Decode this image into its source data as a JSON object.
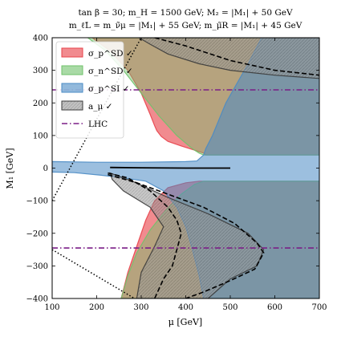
{
  "chart_data": {
    "type": "area",
    "title_line1": "tan β = 30; m_H = 1500 GeV; M₂ = |M₁| + 50 GeV",
    "title_line2": "m_ℓ̃L = m_ν̃μ = |M₁| + 55 GeV; m_μ̃R = |M₁| + 45 GeV",
    "xlabel": "μ [GeV]",
    "ylabel": "M₁ [GeV]",
    "xlim": [
      100,
      700
    ],
    "ylim": [
      -400,
      400
    ],
    "xticks": [
      100,
      200,
      300,
      400,
      500,
      600,
      700
    ],
    "yticks": [
      -400,
      -300,
      -200,
      -100,
      0,
      100,
      200,
      300,
      400
    ],
    "legend_position": "top-left",
    "series": [
      {
        "name": "σ_p^SD ✓",
        "kind": "region",
        "color": "#e8434b",
        "opacity": 0.62,
        "upper": [
          [
            190,
            400
          ],
          [
            230,
            360
          ],
          [
            270,
            300
          ],
          [
            300,
            230
          ],
          [
            320,
            165
          ],
          [
            330,
            130
          ],
          [
            335,
            115
          ],
          [
            345,
            97
          ],
          [
            360,
            82
          ],
          [
            390,
            68
          ],
          [
            420,
            55
          ],
          [
            440,
            46
          ],
          [
            445,
            40
          ],
          [
            700,
            40
          ],
          [
            700,
            400
          ]
        ],
        "lower": [
          [
            255,
            -400
          ],
          [
            270,
            -320
          ],
          [
            290,
            -240
          ],
          [
            310,
            -160
          ],
          [
            330,
            -100
          ],
          [
            360,
            -60
          ],
          [
            400,
            -45
          ],
          [
            430,
            -40
          ],
          [
            700,
            -40
          ],
          [
            700,
            -400
          ]
        ]
      },
      {
        "name": "σ_n^SD ✓",
        "kind": "region",
        "color": "#6fc26a",
        "opacity": 0.45,
        "upper": [
          [
            180,
            400
          ],
          [
            220,
            360
          ],
          [
            260,
            300
          ],
          [
            300,
            230
          ],
          [
            340,
            160
          ],
          [
            380,
            100
          ],
          [
            410,
            65
          ],
          [
            420,
            55
          ],
          [
            430,
            46
          ],
          [
            440,
            40
          ],
          [
            700,
            40
          ],
          [
            700,
            400
          ]
        ],
        "lower": [
          [
            255,
            -400
          ],
          [
            270,
            -330
          ],
          [
            290,
            -260
          ],
          [
            320,
            -190
          ],
          [
            355,
            -130
          ],
          [
            390,
            -80
          ],
          [
            420,
            -50
          ],
          [
            440,
            -40
          ],
          [
            700,
            -40
          ],
          [
            700,
            -400
          ]
        ]
      },
      {
        "name": "σ_p^SI ✓",
        "kind": "region",
        "color": "#4a8bc4",
        "opacity": 0.55,
        "upper": [
          [
            100,
            20
          ],
          [
            200,
            18
          ],
          [
            300,
            18
          ],
          [
            400,
            20
          ],
          [
            425,
            22
          ],
          [
            440,
            40
          ],
          [
            445,
            60
          ],
          [
            460,
            100
          ],
          [
            490,
            200
          ],
          [
            540,
            320
          ],
          [
            570,
            400
          ],
          [
            700,
            400
          ],
          [
            700,
            -400
          ],
          [
            440,
            -400
          ],
          [
            430,
            -330
          ],
          [
            415,
            -250
          ],
          [
            400,
            -180
          ],
          [
            380,
            -120
          ],
          [
            350,
            -70
          ],
          [
            310,
            -40
          ],
          [
            260,
            -30
          ],
          [
            210,
            -22
          ],
          [
            150,
            -14
          ],
          [
            100,
            -12
          ]
        ]
      },
      {
        "name": "a_μ ✓",
        "kind": "region",
        "color": "#3a3a3a",
        "opacity": 0.55,
        "upper": [
          [
            295,
            400
          ],
          [
            320,
            380
          ],
          [
            360,
            350
          ],
          [
            430,
            320
          ],
          [
            500,
            300
          ],
          [
            600,
            285
          ],
          [
            700,
            275
          ],
          [
            700,
            400
          ]
        ],
        "lower": [
          [
            230,
            -15
          ],
          [
            280,
            -40
          ],
          [
            360,
            -90
          ],
          [
            450,
            -140
          ],
          [
            540,
            -200
          ],
          [
            575,
            -250
          ],
          [
            560,
            -300
          ],
          [
            500,
            -340
          ],
          [
            450,
            -400
          ],
          [
            290,
            -400
          ],
          [
            300,
            -320
          ],
          [
            330,
            -240
          ],
          [
            350,
            -180
          ],
          [
            320,
            -120
          ],
          [
            260,
            -70
          ],
          [
            235,
            -35
          ]
        ]
      },
      {
        "name": "LHC",
        "kind": "line",
        "color": "#7b1f87",
        "y_values": [
          240,
          -245
        ]
      }
    ],
    "boundaries": {
      "dotted_upper": [
        [
          100,
          -100
        ],
        [
          300,
          400
        ]
      ],
      "dotted_lower": [
        [
          100,
          -250
        ],
        [
          285,
          -400
        ]
      ],
      "dashed_upper": [
        [
          330,
          400
        ],
        [
          400,
          375
        ],
        [
          500,
          330
        ],
        [
          600,
          300
        ],
        [
          700,
          285
        ]
      ],
      "dashed_lower_outer": [
        [
          225,
          -20
        ],
        [
          290,
          -45
        ],
        [
          360,
          -80
        ],
        [
          440,
          -120
        ],
        [
          510,
          -170
        ],
        [
          560,
          -230
        ],
        [
          575,
          -260
        ],
        [
          555,
          -310
        ],
        [
          500,
          -345
        ],
        [
          440,
          -380
        ],
        [
          400,
          -400
        ]
      ],
      "dashed_lower_inner": [
        [
          225,
          -15
        ],
        [
          270,
          -30
        ],
        [
          320,
          -70
        ],
        [
          360,
          -120
        ],
        [
          380,
          -160
        ],
        [
          390,
          -200
        ],
        [
          380,
          -250
        ],
        [
          370,
          -300
        ],
        [
          350,
          -340
        ],
        [
          330,
          -400
        ]
      ],
      "black_spike": [
        [
          230,
          2
        ],
        [
          300,
          1
        ],
        [
          400,
          0
        ],
        [
          500,
          0
        ]
      ]
    }
  }
}
